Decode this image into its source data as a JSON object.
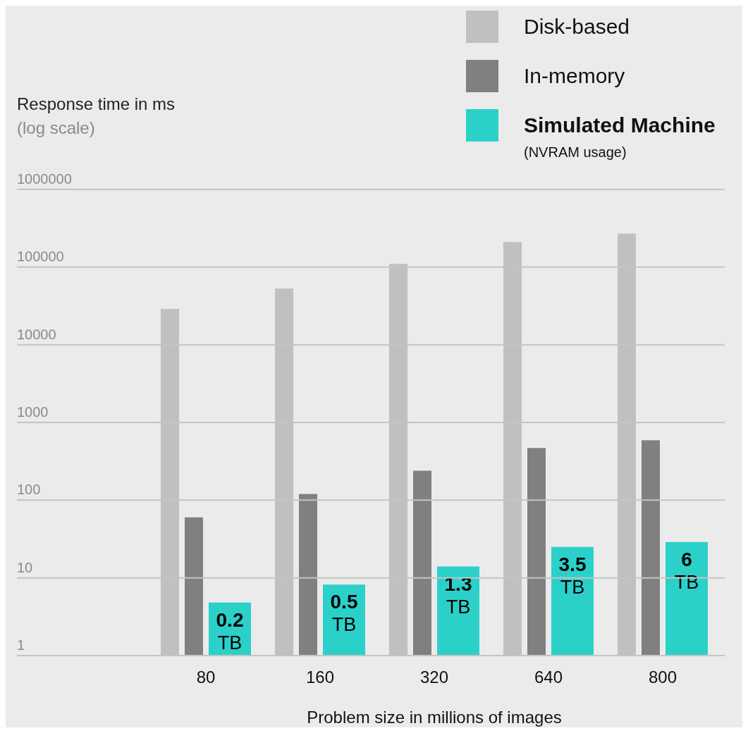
{
  "chart_data": {
    "type": "bar",
    "ylabel": "Response time in ms",
    "xlabel": "Problem size in millions of images",
    "annotations": [
      "(log scale)",
      "(NVRAM usage)",
      {
        "text": "0.2 TB",
        "x": "80",
        "y": 4.8
      },
      {
        "text": "0.5 TB",
        "x": "160",
        "y": 8.2
      },
      {
        "text": "1.3 TB",
        "x": "320",
        "y": 14
      },
      {
        "text": "3.5 TB",
        "x": "640",
        "y": 25
      },
      {
        "text": "6 TB",
        "x": "800",
        "y": 29
      }
    ],
    "categories": [
      "80",
      "160",
      "320",
      "640",
      "800"
    ],
    "series": [
      {
        "name": "Disk-based",
        "color": "#c0c0c0",
        "values": [
          29000,
          53000,
          110000,
          210000,
          270000
        ]
      },
      {
        "name": "In-memory",
        "color": "#808080",
        "values": [
          60,
          120,
          240,
          470,
          590
        ]
      },
      {
        "name": "Simulated Machine",
        "color": "#2bd1c9",
        "values": [
          4.8,
          8.2,
          14,
          25,
          29
        ]
      }
    ],
    "log": true,
    "ylim": [
      1,
      1000000
    ],
    "yticks": [
      1,
      10,
      100,
      1000,
      10000,
      100000,
      1000000
    ],
    "grid": "y",
    "legend": "top right"
  }
}
